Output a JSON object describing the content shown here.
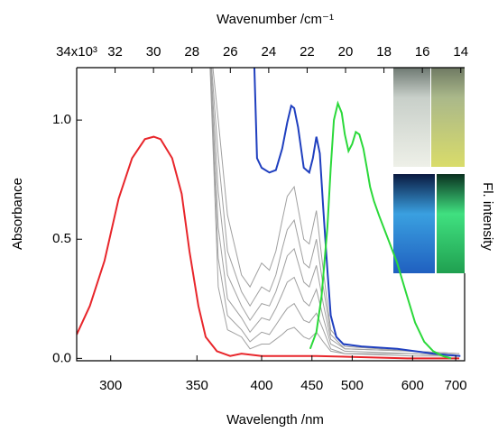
{
  "chart_data": {
    "type": "line",
    "xlabel": "Wavelength /nm",
    "ylabel": "Absorbance",
    "y2label": "Fl. intensity",
    "x2label": "Wavenumber /cm⁻¹",
    "xscale": "reciprocal",
    "xlim": [
      284,
      725
    ],
    "xticks": [
      300,
      350,
      400,
      450,
      500,
      600,
      700
    ],
    "x2lim": [
      34.0,
      13.8
    ],
    "x2ticks": [
      {
        "value": 34,
        "label": "34x10³"
      },
      32,
      30,
      28,
      26,
      24,
      22,
      20,
      18,
      16,
      14
    ],
    "ylim": [
      -0.01,
      1.22
    ],
    "yticks": [
      {
        "value": 0,
        "label": "0.0"
      },
      {
        "value": 0.5,
        "label": "0.5"
      },
      {
        "value": 1,
        "label": "1.0"
      }
    ],
    "series": [
      {
        "color": "#a0a0a0",
        "x": [
          358,
          365,
          372,
          383,
          390,
          400,
          407,
          413,
          419,
          424,
          431,
          441,
          447,
          455,
          463,
          472,
          490,
          600,
          710
        ],
        "values": [
          1.4,
          1.0,
          0.6,
          0.35,
          0.3,
          0.4,
          0.37,
          0.45,
          0.58,
          0.68,
          0.72,
          0.5,
          0.48,
          0.62,
          0.37,
          0.12,
          0.05,
          0.03,
          0.02
        ]
      },
      {
        "color": "#a0a0a0",
        "x": [
          358,
          365,
          372,
          383,
          390,
          400,
          407,
          413,
          419,
          424,
          431,
          441,
          447,
          455,
          463,
          472,
          490,
          600,
          710
        ],
        "values": [
          1.4,
          0.85,
          0.45,
          0.28,
          0.22,
          0.3,
          0.28,
          0.35,
          0.46,
          0.54,
          0.58,
          0.4,
          0.38,
          0.5,
          0.3,
          0.1,
          0.04,
          0.03,
          0.02
        ]
      },
      {
        "color": "#a0a0a0",
        "x": [
          358,
          365,
          372,
          383,
          390,
          400,
          407,
          413,
          419,
          424,
          431,
          441,
          447,
          455,
          463,
          472,
          490,
          600,
          710
        ],
        "values": [
          1.4,
          0.7,
          0.35,
          0.22,
          0.16,
          0.23,
          0.22,
          0.28,
          0.36,
          0.43,
          0.46,
          0.32,
          0.3,
          0.39,
          0.23,
          0.08,
          0.04,
          0.03,
          0.02
        ]
      },
      {
        "color": "#a0a0a0",
        "x": [
          358,
          365,
          372,
          383,
          390,
          400,
          407,
          413,
          419,
          424,
          431,
          441,
          447,
          455,
          463,
          472,
          490,
          600,
          710
        ],
        "values": [
          1.4,
          0.55,
          0.25,
          0.17,
          0.11,
          0.17,
          0.16,
          0.21,
          0.27,
          0.32,
          0.34,
          0.24,
          0.22,
          0.29,
          0.17,
          0.06,
          0.03,
          0.02,
          0.01
        ]
      },
      {
        "color": "#a0a0a0",
        "x": [
          358,
          365,
          372,
          383,
          390,
          400,
          407,
          413,
          419,
          424,
          431,
          441,
          447,
          455,
          463,
          472,
          490,
          600,
          710
        ],
        "values": [
          1.4,
          0.42,
          0.18,
          0.12,
          0.07,
          0.11,
          0.1,
          0.14,
          0.18,
          0.21,
          0.23,
          0.16,
          0.15,
          0.19,
          0.12,
          0.04,
          0.02,
          0.02,
          0.01
        ]
      },
      {
        "color": "#a0a0a0",
        "x": [
          358,
          365,
          372,
          383,
          390,
          400,
          407,
          413,
          419,
          424,
          431,
          441,
          447,
          455,
          463,
          472,
          490,
          600,
          710
        ],
        "values": [
          1.4,
          0.3,
          0.12,
          0.09,
          0.04,
          0.06,
          0.06,
          0.08,
          0.1,
          0.12,
          0.13,
          0.09,
          0.08,
          0.11,
          0.07,
          0.03,
          0.02,
          0.01,
          0.01
        ]
      },
      {
        "color": "#e8262b",
        "x": [
          284,
          290,
          297,
          304,
          311,
          318,
          323,
          327,
          334,
          340,
          345,
          351,
          356,
          364,
          374,
          383,
          400,
          455,
          590,
          710
        ],
        "values": [
          0.1,
          0.22,
          0.41,
          0.67,
          0.84,
          0.92,
          0.93,
          0.92,
          0.84,
          0.69,
          0.45,
          0.22,
          0.09,
          0.03,
          0.01,
          0.02,
          0.01,
          0.01,
          0.0,
          0.0
        ]
      },
      {
        "color": "#1f3fbf",
        "x": [
          392,
          396,
          400,
          407,
          413,
          419,
          424,
          428,
          431,
          435,
          441,
          447,
          451,
          455,
          459,
          463,
          468,
          472,
          479,
          488,
          513,
          571,
          644,
          713
        ],
        "values": [
          1.5,
          0.84,
          0.8,
          0.78,
          0.79,
          0.88,
          0.99,
          1.06,
          1.05,
          0.97,
          0.8,
          0.78,
          0.84,
          0.93,
          0.86,
          0.63,
          0.37,
          0.18,
          0.09,
          0.06,
          0.05,
          0.04,
          0.02,
          0.01
        ]
      },
      {
        "color": "#2bd93a",
        "x": [
          448,
          455,
          461,
          468,
          472,
          476,
          481,
          486,
          490,
          495,
          500,
          505,
          510,
          516,
          521,
          526,
          532,
          540,
          555,
          571,
          588,
          605,
          624,
          644,
          666,
          688
        ],
        "values": [
          0.04,
          0.11,
          0.26,
          0.55,
          0.8,
          1.0,
          1.07,
          1.03,
          0.94,
          0.87,
          0.9,
          0.95,
          0.94,
          0.88,
          0.8,
          0.72,
          0.66,
          0.6,
          0.5,
          0.4,
          0.27,
          0.15,
          0.07,
          0.03,
          0.01,
          0.0
        ]
      }
    ]
  }
}
